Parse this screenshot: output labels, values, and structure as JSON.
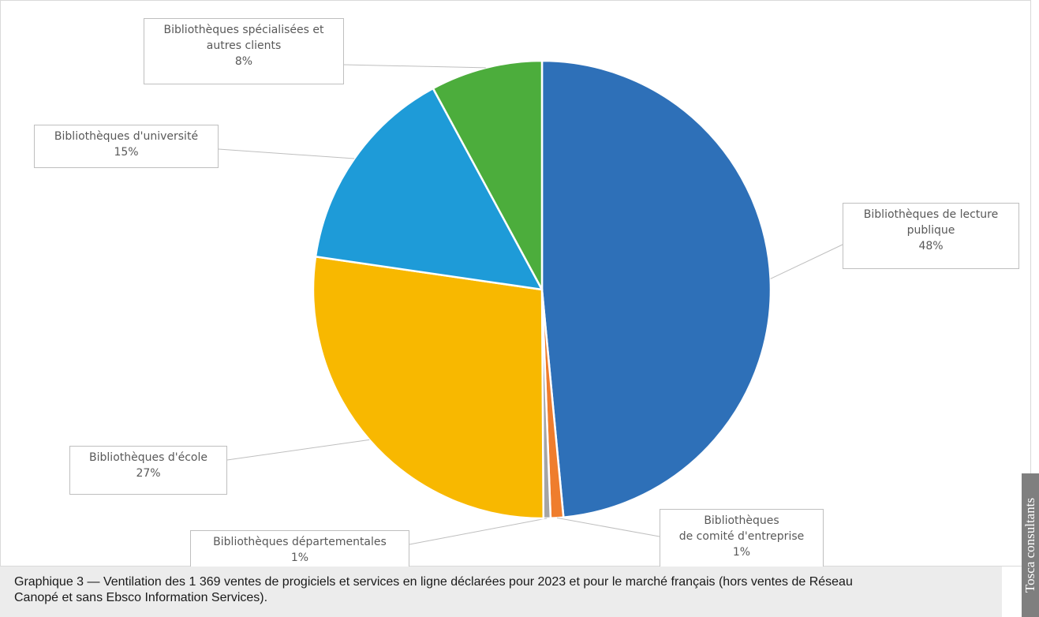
{
  "chart_data": {
    "type": "pie",
    "slices": [
      {
        "label_lines": [
          "Bibliothèques de lecture",
          "publique"
        ],
        "pct_text": "48%",
        "value": 48.5,
        "color": "#2e70b8"
      },
      {
        "label_lines": [
          "Bibliothèques",
          "de comité d'entreprise"
        ],
        "pct_text": "1%",
        "value": 0.9,
        "color": "#ef7d2d"
      },
      {
        "label_lines": [
          "Bibliothèques départementales"
        ],
        "pct_text": "1%",
        "value": 0.5,
        "color": "#a5a5a5"
      },
      {
        "label_lines": [
          "Bibliothèques d'école"
        ],
        "pct_text": "27%",
        "value": 27.4,
        "color": "#f8b800"
      },
      {
        "label_lines": [
          "Bibliothèques d'université"
        ],
        "pct_text": "15%",
        "value": 14.8,
        "color": "#1e9bd8"
      },
      {
        "label_lines": [
          "Bibliothèques spécialisées et",
          "autres clients"
        ],
        "pct_text": "8%",
        "value": 7.9,
        "color": "#4cad3c"
      }
    ],
    "legend": "none",
    "data_labels": "outside with leader lines"
  },
  "caption": {
    "line1": "Graphique 3 — Ventilation des 1 369 ventes de progiciels et services en ligne déclarées pour 2023 et pour le marché français (hors ventes de Réseau",
    "line2": "Canopé et sans Ebsco Information Services)."
  },
  "watermark": "Tosca consultants"
}
